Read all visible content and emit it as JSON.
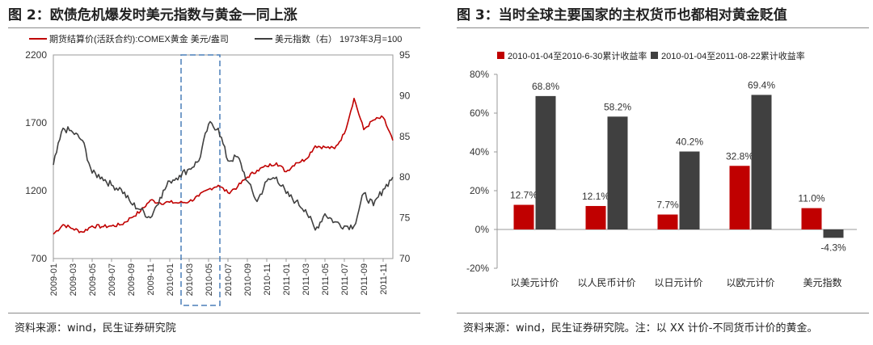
{
  "left": {
    "title": "图 2：欧债危机爆发时美元指数与黄金一同上涨",
    "source": "资料来源：wind，民生证券研究院",
    "legend": {
      "gold": "期货结算价(活跃合约):COMEX黄金 美元/盎司",
      "usd": "美元指数（右） 1973年3月=100"
    }
  },
  "right": {
    "title": "图 3：当时全球主要国家的主权货币也都相对黄金贬值",
    "source": "资料来源：wind，民生证券研究院。注：以 XX 计价-不同货币计价的黄金。"
  },
  "colors": {
    "red": "#c00000",
    "dark": "#404040",
    "highlight": "#4a7eb8"
  },
  "chart_data": [
    {
      "type": "line",
      "x_ticks": [
        "2009-01",
        "2009-03",
        "2009-05",
        "2009-07",
        "2009-09",
        "2009-11",
        "2010-01",
        "2010-03",
        "2010-05",
        "2010-07",
        "2010-09",
        "2010-11",
        "2011-01",
        "2011-03",
        "2011-05",
        "2011-07",
        "2011-09",
        "2011-11"
      ],
      "y_left": {
        "ticks": [
          "2200",
          "1700",
          "1200",
          "700"
        ],
        "ylim": [
          700,
          2200
        ]
      },
      "y_right": {
        "ticks": [
          "95",
          "90",
          "85",
          "80",
          "75",
          "70"
        ],
        "ylim": [
          70,
          95
        ]
      },
      "highlight_range": [
        "2010-02",
        "2010-06"
      ],
      "series": [
        {
          "name": "期货结算价(活跃合约):COMEX黄金 美元/盎司",
          "axis": "left",
          "color": "#c00000",
          "points": [
            [
              "2009-01",
              880
            ],
            [
              "2009-02",
              950
            ],
            [
              "2009-03",
              920
            ],
            [
              "2009-04",
              895
            ],
            [
              "2009-05",
              940
            ],
            [
              "2009-06",
              935
            ],
            [
              "2009-07",
              940
            ],
            [
              "2009-08",
              950
            ],
            [
              "2009-09",
              1000
            ],
            [
              "2009-10",
              1050
            ],
            [
              "2009-11",
              1130
            ],
            [
              "2009-12",
              1110
            ],
            [
              "2010-01",
              1115
            ],
            [
              "2010-02",
              1110
            ],
            [
              "2010-03",
              1120
            ],
            [
              "2010-04",
              1160
            ],
            [
              "2010-05",
              1210
            ],
            [
              "2010-06",
              1240
            ],
            [
              "2010-07",
              1185
            ],
            [
              "2010-08",
              1230
            ],
            [
              "2010-09",
              1300
            ],
            [
              "2010-10",
              1350
            ],
            [
              "2010-11",
              1380
            ],
            [
              "2010-12",
              1405
            ],
            [
              "2011-01",
              1340
            ],
            [
              "2011-02",
              1405
            ],
            [
              "2011-03",
              1430
            ],
            [
              "2011-04",
              1530
            ],
            [
              "2011-05",
              1520
            ],
            [
              "2011-06",
              1510
            ],
            [
              "2011-07",
              1620
            ],
            [
              "2011-08",
              1880
            ],
            [
              "2011-09",
              1650
            ],
            [
              "2011-10",
              1720
            ],
            [
              "2011-11",
              1740
            ],
            [
              "2011-12",
              1570
            ]
          ]
        },
        {
          "name": "美元指数（右） 1973年3月=100",
          "axis": "right",
          "color": "#404040",
          "points": [
            [
              "2009-01",
              81.5
            ],
            [
              "2009-02",
              86
            ],
            [
              "2009-03",
              85.5
            ],
            [
              "2009-04",
              84.5
            ],
            [
              "2009-05",
              80.5
            ],
            [
              "2009-06",
              80
            ],
            [
              "2009-07",
              79
            ],
            [
              "2009-08",
              78.5
            ],
            [
              "2009-09",
              76.8
            ],
            [
              "2009-10",
              76
            ],
            [
              "2009-11",
              75
            ],
            [
              "2009-12",
              77.5
            ],
            [
              "2010-01",
              79.5
            ],
            [
              "2010-02",
              80.2
            ],
            [
              "2010-03",
              81
            ],
            [
              "2010-04",
              82
            ],
            [
              "2010-05",
              86.5
            ],
            [
              "2010-06",
              86
            ],
            [
              "2010-07",
              82
            ],
            [
              "2010-08",
              82.5
            ],
            [
              "2010-09",
              79.5
            ],
            [
              "2010-10",
              77
            ],
            [
              "2010-11",
              79.5
            ],
            [
              "2010-12",
              80
            ],
            [
              "2011-01",
              78
            ],
            [
              "2011-02",
              77
            ],
            [
              "2011-03",
              76
            ],
            [
              "2011-04",
              73.5
            ],
            [
              "2011-05",
              75.5
            ],
            [
              "2011-06",
              74.5
            ],
            [
              "2011-07",
              74
            ],
            [
              "2011-08",
              74
            ],
            [
              "2011-09",
              78
            ],
            [
              "2011-10",
              76.5
            ],
            [
              "2011-11",
              78.5
            ],
            [
              "2011-12",
              80
            ]
          ]
        }
      ]
    },
    {
      "type": "bar",
      "categories": [
        "以美元计价",
        "以人民币计价",
        "以日元计价",
        "以欧元计价",
        "美元指数"
      ],
      "ylim": [
        -20,
        80
      ],
      "y_ticks": [
        "80%",
        "60%",
        "40%",
        "20%",
        "0%",
        "-20%"
      ],
      "series": [
        {
          "name": "2010-01-04至2010-6-30累计收益率",
          "color": "#c00000",
          "values": [
            12.7,
            12.1,
            7.7,
            32.8,
            11.0
          ],
          "labels": [
            "12.7%",
            "12.1%",
            "7.7%",
            "32.8%",
            "11.0%"
          ]
        },
        {
          "name": "2010-01-04至2011-08-22累计收益率",
          "color": "#404040",
          "values": [
            68.8,
            58.2,
            40.2,
            69.4,
            -4.3
          ],
          "labels": [
            "68.8%",
            "58.2%",
            "40.2%",
            "69.4%",
            "-4.3%"
          ]
        }
      ]
    }
  ]
}
